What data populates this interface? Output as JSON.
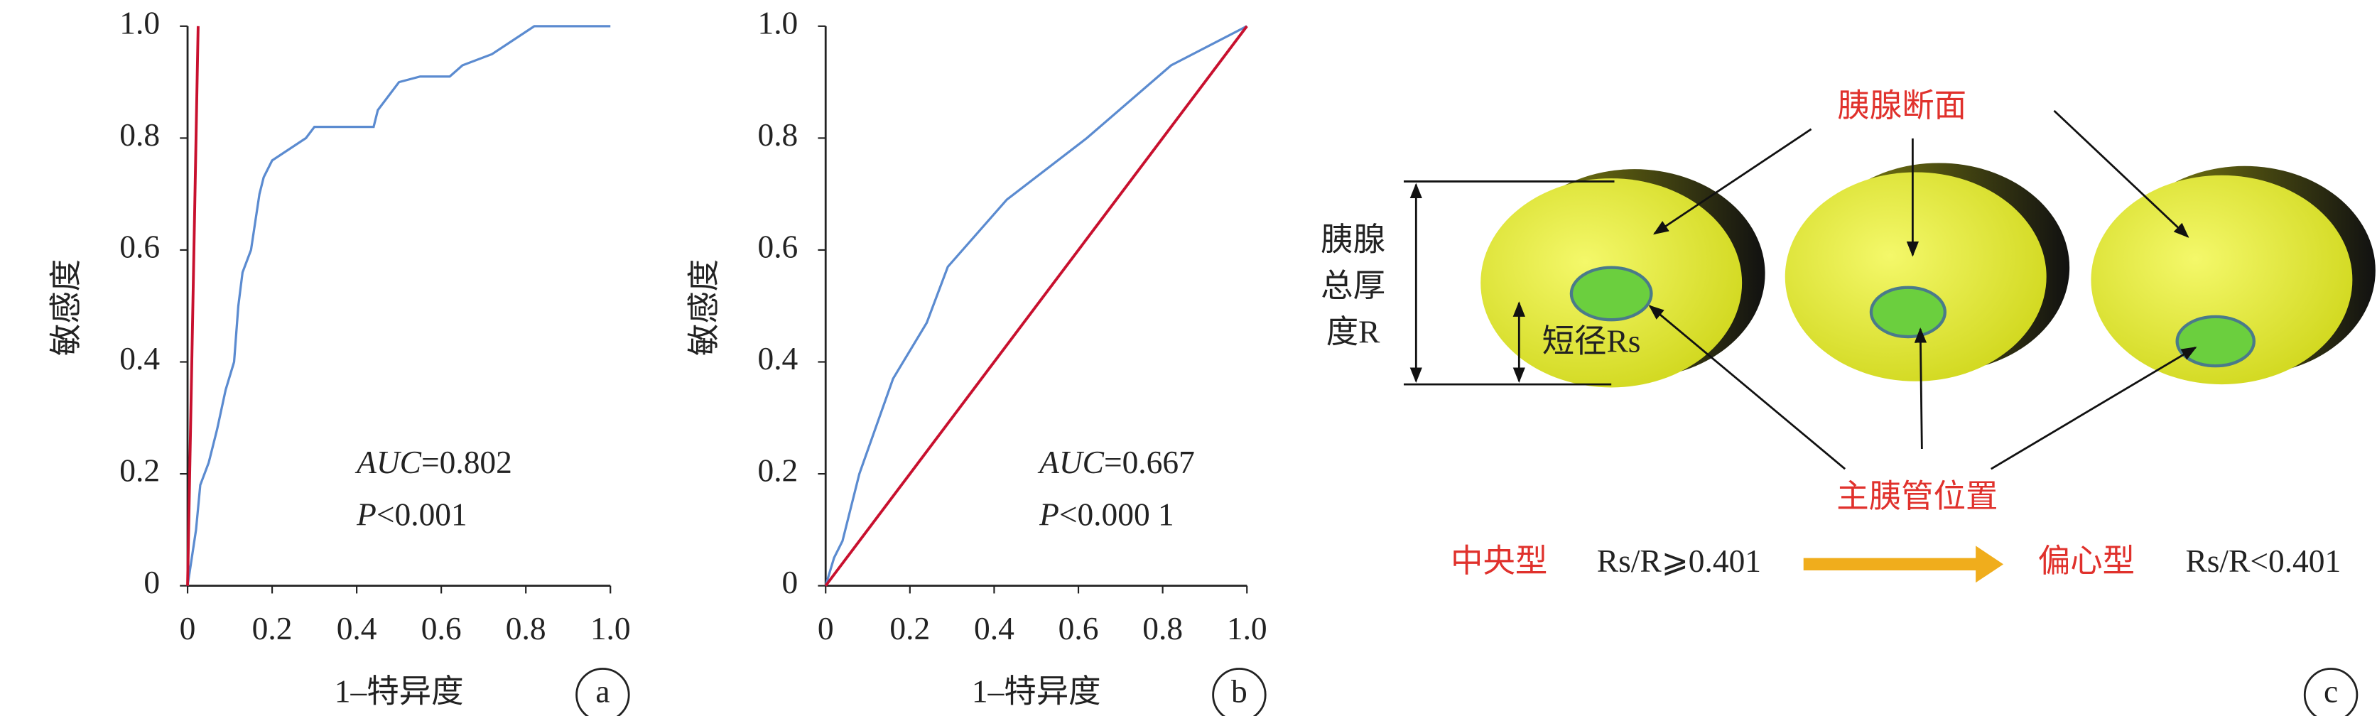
{
  "chart_data": [
    {
      "type": "line",
      "panel_label": "a",
      "xlabel": "1–特异度",
      "ylabel": "敏感度",
      "annotations": [
        {
          "italic": "AUC",
          "text": "=0.802"
        },
        {
          "italic": "P",
          "text": "<0.001"
        }
      ],
      "xlim": [
        0,
        1
      ],
      "ylim": [
        0,
        1
      ],
      "xticks": [
        0,
        0.2,
        0.4,
        0.6,
        0.8,
        {
          "value": 1,
          "label": "1.0"
        }
      ],
      "yticks": [
        0,
        0.2,
        0.4,
        0.6,
        0.8,
        {
          "value": 1,
          "label": "1.0"
        }
      ],
      "series": [
        {
          "color": "#5b8bd0",
          "x": [
            0,
            0.01,
            0.02,
            0.03,
            0.05,
            0.07,
            0.09,
            0.11,
            0.12,
            0.13,
            0.15,
            0.16,
            0.17,
            0.18,
            0.2,
            0.24,
            0.28,
            0.3,
            0.44,
            0.45,
            0.48,
            0.5,
            0.55,
            0.62,
            0.65,
            0.72,
            0.76,
            0.8,
            0.82,
            1
          ],
          "values": [
            0,
            0.05,
            0.1,
            0.18,
            0.22,
            0.28,
            0.35,
            0.4,
            0.5,
            0.56,
            0.6,
            0.65,
            0.7,
            0.73,
            0.76,
            0.78,
            0.8,
            0.82,
            0.82,
            0.85,
            0.88,
            0.9,
            0.91,
            0.91,
            0.93,
            0.95,
            0.97,
            0.99,
            1,
            1
          ]
        },
        {
          "color": "#c8102e",
          "x": [
            0,
            0.025
          ],
          "values": [
            0,
            1
          ]
        }
      ]
    },
    {
      "type": "line",
      "panel_label": "b",
      "xlabel": "1–特异度",
      "ylabel": "敏感度",
      "annotations": [
        {
          "italic": "AUC",
          "text": "=0.667"
        },
        {
          "italic": "P",
          "text": "<0.000 1"
        }
      ],
      "xlim": [
        0,
        1
      ],
      "ylim": [
        0,
        1
      ],
      "xticks": [
        0,
        0.2,
        0.4,
        0.6,
        0.8,
        {
          "value": 1,
          "label": "1.0"
        }
      ],
      "yticks": [
        0,
        0.2,
        0.4,
        0.6,
        0.8,
        {
          "value": 1,
          "label": "1.0"
        }
      ],
      "series": [
        {
          "color": "#5b8bd0",
          "x": [
            0,
            0.02,
            0.04,
            0.08,
            0.16,
            0.24,
            0.29,
            0.43,
            0.62,
            0.82,
            1
          ],
          "values": [
            0,
            0.05,
            0.08,
            0.2,
            0.37,
            0.47,
            0.57,
            0.69,
            0.8,
            0.93,
            1
          ]
        },
        {
          "color": "#c8102e",
          "x": [
            0,
            1
          ],
          "values": [
            0,
            1
          ]
        }
      ]
    }
  ],
  "diagram": {
    "section_label": "胰腺断面",
    "thickness_label": [
      "胰腺",
      "总厚",
      "度R"
    ],
    "short_label": "短径Rs",
    "duct_label": "主胰管位置",
    "central": "中央型",
    "central_rule": "Rs/R⩾0.401",
    "eccentric": "偏心型",
    "eccentric_rule": "Rs/R<0.401",
    "panel_label": "c"
  }
}
